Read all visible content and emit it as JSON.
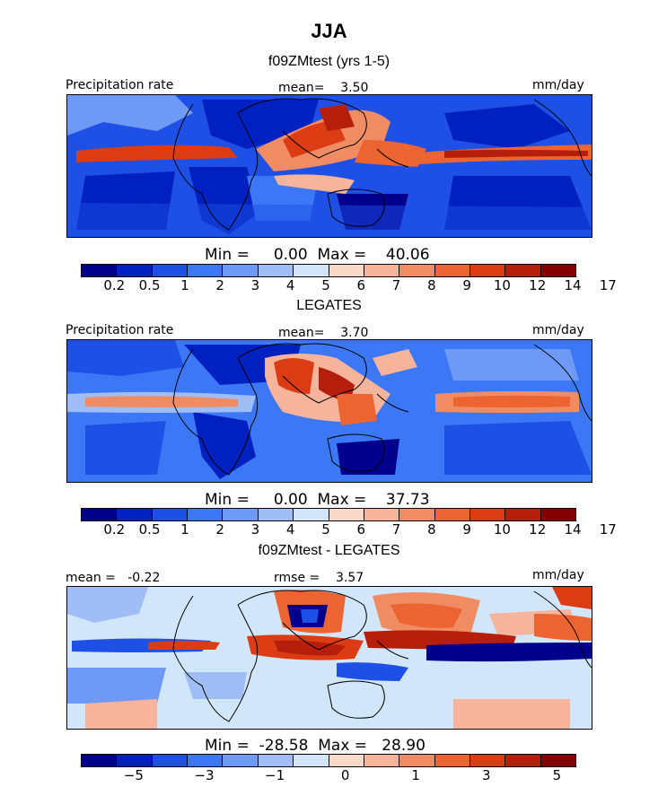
{
  "title": "JJA",
  "colors": {
    "precip": [
      "#00008c",
      "#0020c0",
      "#1e50e6",
      "#3c78f5",
      "#6e9af5",
      "#a0bef5",
      "#d2e6fa",
      "#f8d8c8",
      "#f5b49b",
      "#f08c64",
      "#eb6432",
      "#dc3c14",
      "#b41e0a",
      "#820000"
    ],
    "diff": [
      "#00008c",
      "#0020c0",
      "#1e50e6",
      "#3c78f5",
      "#6e9af5",
      "#a0bef5",
      "#d2e6fa",
      "#f8d8c8",
      "#f5b49b",
      "#f08c64",
      "#eb6432",
      "#dc3c14",
      "#b41e0a",
      "#820000"
    ]
  },
  "panels": [
    {
      "title": "f09ZMtest (yrs 1-5)",
      "left_label": "Precipitation rate",
      "center_label": "mean=    3.50",
      "right_label": "mm/day",
      "stats": "Min =     0.00  Max =    40.06",
      "tick_labels": [
        "0.2",
        "0.5",
        "1",
        "2",
        "3",
        "4",
        "5",
        "6",
        "7",
        "8",
        "9",
        "10",
        "12",
        "14",
        "17"
      ]
    },
    {
      "title": "LEGATES",
      "left_label": "Precipitation rate",
      "center_label": "mean=    3.70",
      "right_label": "mm/day",
      "stats": "Min =     0.00  Max =    37.73",
      "tick_labels": [
        "0.2",
        "0.5",
        "1",
        "2",
        "3",
        "4",
        "5",
        "6",
        "7",
        "8",
        "9",
        "10",
        "12",
        "14",
        "17"
      ]
    },
    {
      "title": "f09ZMtest - LEGATES",
      "left_label": "mean =   -0.22",
      "center_label": "rmse =    3.57",
      "right_label": "mm/day",
      "stats": "Min =  -28.58  Max =   28.90",
      "tick_labels": [
        "−5",
        "−3",
        "−1",
        "0",
        "1",
        "3",
        "5"
      ]
    }
  ]
}
